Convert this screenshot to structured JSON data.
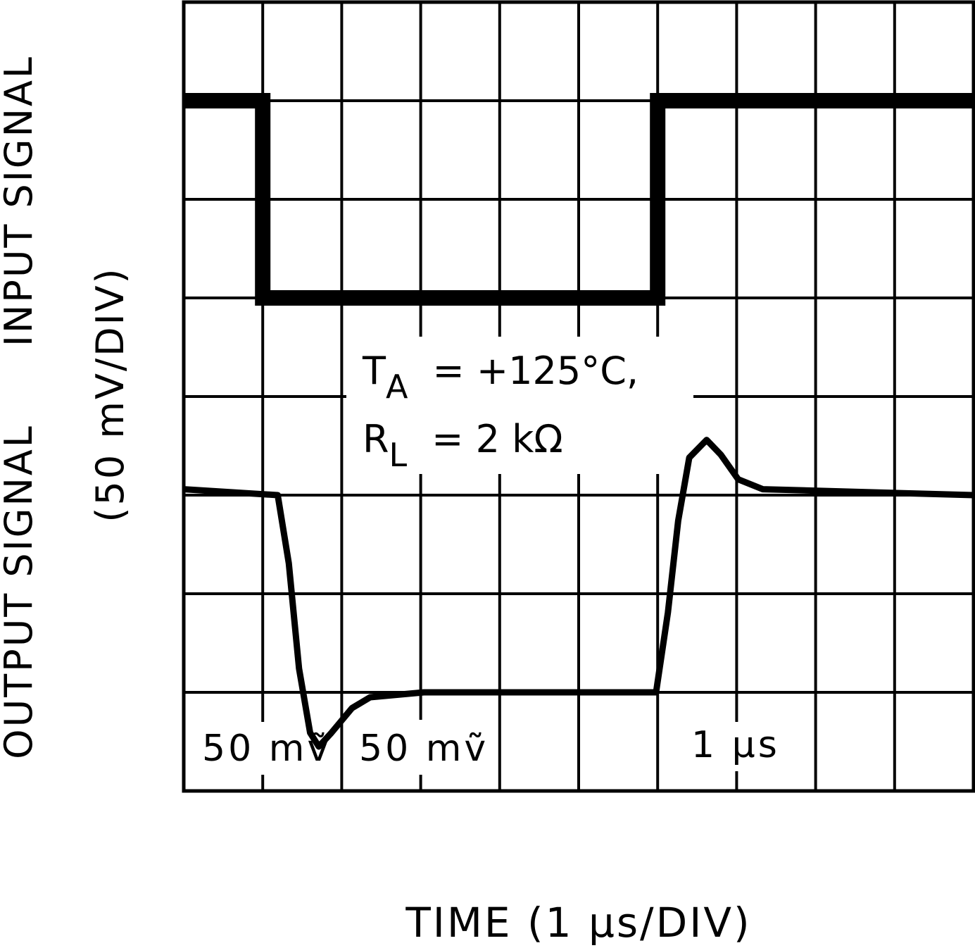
{
  "chart_data": {
    "type": "line",
    "x_label": "TIME (1 μs/DIV)",
    "y_labels": [
      "OUTPUT SIGNAL",
      "INPUT SIGNAL",
      "(50 mV/DIV)"
    ],
    "xlim": [
      0,
      10
    ],
    "ylim": [
      0,
      8
    ],
    "xticks": [
      0,
      1,
      2,
      3,
      4,
      5,
      6,
      7,
      8,
      9,
      10
    ],
    "yticks": [
      0,
      1,
      2,
      3,
      4,
      5,
      6,
      7,
      8
    ],
    "grid": true,
    "series": [
      {
        "color": "#000000",
        "x": [
          0,
          1,
          1,
          6,
          6,
          10
        ],
        "values": [
          7,
          7,
          5,
          5,
          7,
          7
        ]
      },
      {
        "color": "#000000",
        "x": [
          0,
          1.19,
          1.33,
          1.46,
          1.6,
          1.71,
          1.87,
          2.13,
          2.36,
          3.04,
          5.98,
          6.13,
          6.26,
          6.4,
          6.62,
          6.8,
          7.02,
          7.33,
          10
        ],
        "values": [
          3.06,
          3.0,
          2.31,
          1.24,
          0.59,
          0.45,
          0.59,
          0.84,
          0.95,
          1.0,
          1.0,
          1.81,
          2.74,
          3.38,
          3.56,
          3.41,
          3.16,
          3.06,
          3.0
        ]
      }
    ],
    "annotations": [
      {
        "main": "T",
        "sub": "A",
        "rest": "=  +125°C,"
      },
      {
        "main": "R",
        "sub": "L",
        "rest": "=  2 kΩ"
      }
    ],
    "scale_labels": [
      "50 mṽ",
      "50 mṽ",
      "1 μs"
    ]
  }
}
